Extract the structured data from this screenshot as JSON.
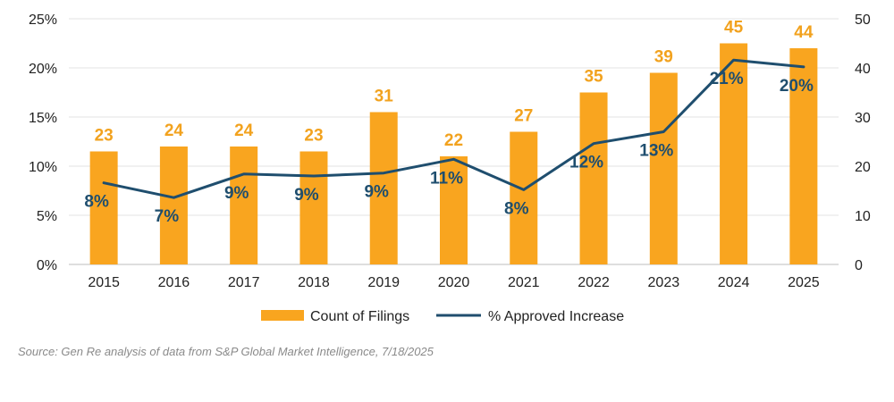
{
  "chart_data": {
    "type": "bar",
    "categories": [
      "2015",
      "2016",
      "2017",
      "2018",
      "2019",
      "2020",
      "2021",
      "2022",
      "2023",
      "2024",
      "2025"
    ],
    "series": [
      {
        "name": "Count of Filings",
        "type": "bar",
        "axis": "right",
        "values": [
          23,
          24,
          24,
          23,
          31,
          22,
          27,
          35,
          39,
          45,
          44
        ],
        "labels": [
          "23",
          "24",
          "24",
          "23",
          "31",
          "22",
          "27",
          "35",
          "39",
          "45",
          "44"
        ]
      },
      {
        "name": "% Approved Increase",
        "type": "line",
        "axis": "left",
        "values": [
          8.3,
          6.8,
          9.2,
          9.0,
          9.3,
          10.7,
          7.6,
          12.3,
          13.5,
          20.8,
          20.1
        ],
        "labels": [
          "8%",
          "7%",
          "9%",
          "9%",
          "9%",
          "11%",
          "8%",
          "12%",
          "13%",
          "21%",
          "20%"
        ]
      }
    ],
    "left_axis": {
      "range": [
        0,
        25
      ],
      "ticks": [
        "0%",
        "5%",
        "10%",
        "15%",
        "20%",
        "25%"
      ]
    },
    "right_axis": {
      "range": [
        0,
        50
      ],
      "ticks": [
        "0",
        "10",
        "20",
        "30",
        "40",
        "50"
      ]
    },
    "legend": [
      "Count of Filings",
      "% Approved Increase"
    ],
    "legend_position": "bottom",
    "grid": true,
    "colors": {
      "bars": "#f9a51f",
      "bar_labels": "#f2a21e",
      "line": "#1f4e6e",
      "grid": "#e3e3e3"
    }
  },
  "source": "Source: Gen Re analysis of data from S&P Global Market Intelligence, 7/18/2025"
}
